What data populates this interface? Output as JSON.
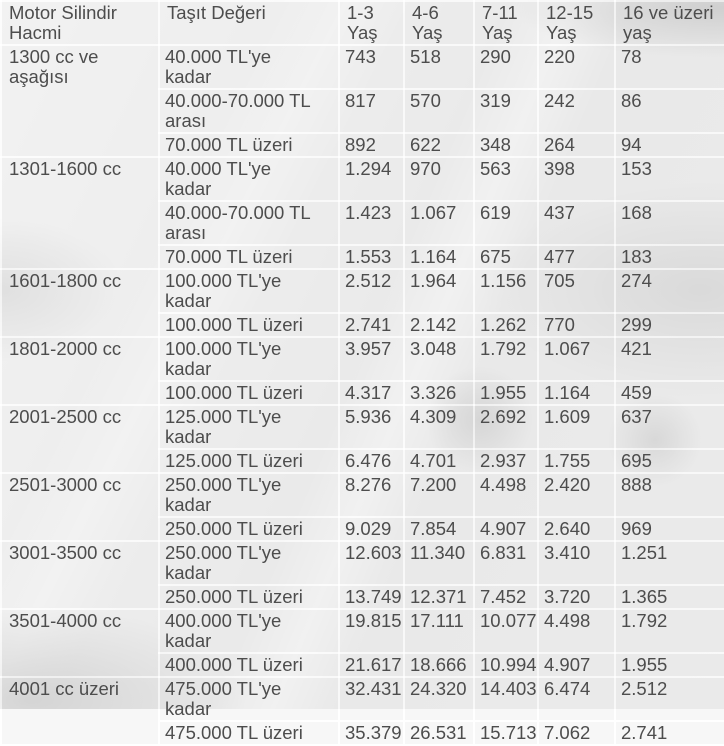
{
  "colors": {
    "text": "#4d4d4d",
    "cell_background": "#f3f3f3",
    "grid_line": "#ffffff",
    "backdrop": "#d6d6d6"
  },
  "header": {
    "cells": [
      {
        "lines": [
          "Motor Silindir",
          "Hacmi"
        ]
      },
      {
        "lines": [
          "Taşıt Değeri"
        ]
      },
      {
        "lines": [
          "1-3",
          "Yaş"
        ]
      },
      {
        "lines": [
          "4-6",
          "Yaş"
        ]
      },
      {
        "lines": [
          "7-11",
          "Yaş"
        ]
      },
      {
        "lines": [
          "12-15",
          "Yaş"
        ]
      },
      {
        "lines": [
          "16 ve üzeri",
          "yaş"
        ]
      }
    ]
  },
  "groups": [
    {
      "engine_lines": [
        "1300 cc ve",
        "aşağısı"
      ],
      "rows": [
        {
          "label_lines": [
            "40.000 TL'ye",
            "kadar"
          ],
          "values": [
            "743",
            "518",
            "290",
            "220",
            "78"
          ]
        },
        {
          "label_lines": [
            "40.000-70.000 TL",
            "arası"
          ],
          "values": [
            "817",
            "570",
            "319",
            "242",
            "86"
          ]
        },
        {
          "label_lines": [
            "70.000 TL üzeri"
          ],
          "values": [
            "892",
            "622",
            "348",
            "264",
            "94"
          ]
        }
      ]
    },
    {
      "engine_lines": [
        "1301-1600 cc"
      ],
      "rows": [
        {
          "label_lines": [
            "40.000 TL'ye",
            "kadar"
          ],
          "values": [
            "1.294",
            "970",
            "563",
            "398",
            "153"
          ]
        },
        {
          "label_lines": [
            "40.000-70.000 TL",
            "arası"
          ],
          "values": [
            "1.423",
            "1.067",
            "619",
            "437",
            "168"
          ]
        },
        {
          "label_lines": [
            "70.000 TL üzeri"
          ],
          "values": [
            "1.553",
            "1.164",
            "675",
            "477",
            "183"
          ]
        }
      ]
    },
    {
      "engine_lines": [
        "1601-1800 cc"
      ],
      "rows": [
        {
          "label_lines": [
            "100.000 TL'ye",
            "kadar"
          ],
          "values": [
            "2.512",
            "1.964",
            "1.156",
            "705",
            "274"
          ]
        },
        {
          "label_lines": [
            "100.000 TL üzeri"
          ],
          "values": [
            "2.741",
            "2.142",
            "1.262",
            "770",
            "299"
          ]
        }
      ]
    },
    {
      "engine_lines": [
        "1801-2000 cc"
      ],
      "rows": [
        {
          "label_lines": [
            "100.000 TL'ye",
            "kadar"
          ],
          "values": [
            "3.957",
            "3.048",
            "1.792",
            "1.067",
            "421"
          ]
        },
        {
          "label_lines": [
            "100.000 TL üzeri"
          ],
          "values": [
            "4.317",
            "3.326",
            "1.955",
            "1.164",
            "459"
          ]
        }
      ]
    },
    {
      "engine_lines": [
        "2001-2500 cc"
      ],
      "rows": [
        {
          "label_lines": [
            "125.000 TL'ye",
            "kadar"
          ],
          "values": [
            "5.936",
            "4.309",
            "2.692",
            "1.609",
            "637"
          ]
        },
        {
          "label_lines": [
            "125.000 TL üzeri"
          ],
          "values": [
            "6.476",
            "4.701",
            "2.937",
            "1.755",
            "695"
          ]
        }
      ]
    },
    {
      "engine_lines": [
        "2501-3000 cc"
      ],
      "rows": [
        {
          "label_lines": [
            "250.000 TL'ye",
            "kadar"
          ],
          "values": [
            "8.276",
            "7.200",
            "4.498",
            "2.420",
            "888"
          ]
        },
        {
          "label_lines": [
            "250.000 TL üzeri"
          ],
          "values": [
            "9.029",
            "7.854",
            "4.907",
            "2.640",
            "969"
          ]
        }
      ]
    },
    {
      "engine_lines": [
        "3001-3500 cc"
      ],
      "rows": [
        {
          "label_lines": [
            "250.000 TL'ye",
            "kadar"
          ],
          "values": [
            "12.603",
            "11.340",
            "6.831",
            "3.410",
            "1.251"
          ]
        },
        {
          "label_lines": [
            "250.000 TL üzeri"
          ],
          "values": [
            "13.749",
            "12.371",
            "7.452",
            "3.720",
            "1.365"
          ]
        }
      ]
    },
    {
      "engine_lines": [
        "3501-4000 cc"
      ],
      "rows": [
        {
          "label_lines": [
            "400.000 TL'ye",
            "kadar"
          ],
          "values": [
            "19.815",
            "17.111",
            "10.077",
            "4.498",
            "1.792"
          ]
        },
        {
          "label_lines": [
            "400.000 TL üzeri"
          ],
          "values": [
            "21.617",
            "18.666",
            "10.994",
            "4.907",
            "1.955"
          ]
        }
      ]
    },
    {
      "engine_lines": [
        "4001 cc üzeri"
      ],
      "rows": [
        {
          "label_lines": [
            "475.000 TL'ye",
            "kadar"
          ],
          "values": [
            "32.431",
            "24.320",
            "14.403",
            "6.474",
            "2.512"
          ]
        },
        {
          "label_lines": [
            "475.000 TL üzeri"
          ],
          "values": [
            "35.379",
            "26.531",
            "15.713",
            "7.062",
            "2.741"
          ]
        }
      ]
    }
  ],
  "chart_data": {
    "type": "table",
    "title": "",
    "columns": [
      "Motor Silindir Hacmi",
      "Taşıt Değeri",
      "1-3 Yaş",
      "4-6 Yaş",
      "7-11 Yaş",
      "12-15 Yaş",
      "16 ve üzeri yaş"
    ],
    "rows": [
      [
        "1300 cc ve aşağısı",
        "40.000 TL'ye kadar",
        "743",
        "518",
        "290",
        "220",
        "78"
      ],
      [
        "",
        "40.000-70.000 TL arası",
        "817",
        "570",
        "319",
        "242",
        "86"
      ],
      [
        "",
        "70.000 TL üzeri",
        "892",
        "622",
        "348",
        "264",
        "94"
      ],
      [
        "1301-1600 cc",
        "40.000 TL'ye kadar",
        "1.294",
        "970",
        "563",
        "398",
        "153"
      ],
      [
        "",
        "40.000-70.000 TL arası",
        "1.423",
        "1.067",
        "619",
        "437",
        "168"
      ],
      [
        "",
        "70.000 TL üzeri",
        "1.553",
        "1.164",
        "675",
        "477",
        "183"
      ],
      [
        "1601-1800 cc",
        "100.000 TL'ye kadar",
        "2.512",
        "1.964",
        "1.156",
        "705",
        "274"
      ],
      [
        "",
        "100.000 TL üzeri",
        "2.741",
        "2.142",
        "1.262",
        "770",
        "299"
      ],
      [
        "1801-2000 cc",
        "100.000 TL'ye kadar",
        "3.957",
        "3.048",
        "1.792",
        "1.067",
        "421"
      ],
      [
        "",
        "100.000 TL üzeri",
        "4.317",
        "3.326",
        "1.955",
        "1.164",
        "459"
      ],
      [
        "2001-2500 cc",
        "125.000 TL'ye kadar",
        "5.936",
        "4.309",
        "2.692",
        "1.609",
        "637"
      ],
      [
        "",
        "125.000 TL üzeri",
        "6.476",
        "4.701",
        "2.937",
        "1.755",
        "695"
      ],
      [
        "2501-3000 cc",
        "250.000 TL'ye kadar",
        "8.276",
        "7.200",
        "4.498",
        "2.420",
        "888"
      ],
      [
        "",
        "250.000 TL üzeri",
        "9.029",
        "7.854",
        "4.907",
        "2.640",
        "969"
      ],
      [
        "3001-3500 cc",
        "250.000 TL'ye kadar",
        "12.603",
        "11.340",
        "6.831",
        "3.410",
        "1.251"
      ],
      [
        "",
        "250.000 TL üzeri",
        "13.749",
        "12.371",
        "7.452",
        "3.720",
        "1.365"
      ],
      [
        "3501-4000 cc",
        "400.000 TL'ye kadar",
        "19.815",
        "17.111",
        "10.077",
        "4.498",
        "1.792"
      ],
      [
        "",
        "400.000 TL üzeri",
        "21.617",
        "18.666",
        "10.994",
        "4.907",
        "1.955"
      ],
      [
        "4001 cc üzeri",
        "475.000 TL'ye kadar",
        "32.431",
        "24.320",
        "14.403",
        "6.474",
        "2.512"
      ],
      [
        "",
        "475.000 TL üzeri",
        "35.379",
        "26.531",
        "15.713",
        "7.062",
        "2.741"
      ]
    ]
  }
}
